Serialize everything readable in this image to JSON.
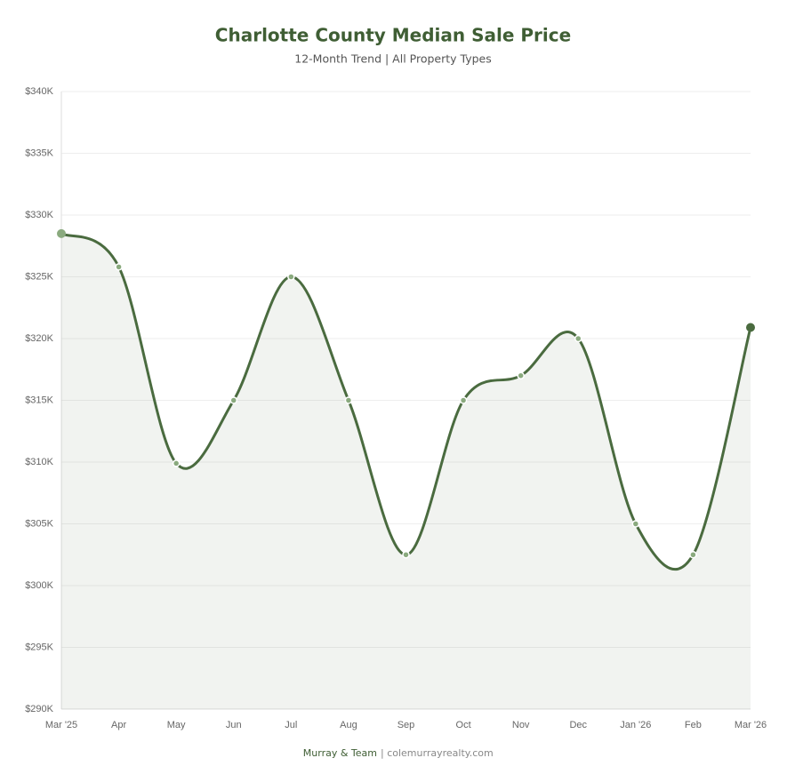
{
  "chart_data": {
    "type": "line",
    "title": "Charlotte County Median Sale Price",
    "subtitle": "12-Month Trend | All Property Types",
    "categories": [
      "Mar '25",
      "Apr",
      "May",
      "Jun",
      "Jul",
      "Aug",
      "Sep",
      "Oct",
      "Nov",
      "Dec",
      "Jan '26",
      "Feb",
      "Mar '26"
    ],
    "values": [
      328.5,
      325.8,
      309.9,
      315,
      325,
      315,
      302.5,
      315,
      317,
      320,
      305,
      302.5,
      320.9
    ],
    "color": "#4a6b3f",
    "ylim": [
      290,
      340
    ],
    "yticks": [
      {
        "value": 290,
        "label": "$290K"
      },
      {
        "value": 295,
        "label": "$295K"
      },
      {
        "value": 300,
        "label": "$300K"
      },
      {
        "value": 305,
        "label": "$305K"
      },
      {
        "value": 310,
        "label": "$310K"
      },
      {
        "value": 315,
        "label": "$315K"
      },
      {
        "value": 320,
        "label": "$320K"
      },
      {
        "value": 325,
        "label": "$325K"
      },
      {
        "value": 330,
        "label": "$330K"
      },
      {
        "value": 335,
        "label": "$335K"
      },
      {
        "value": 340,
        "label": "$340K"
      }
    ],
    "grid": true,
    "footer_brand": "Murray & Team",
    "footer_site": "| colemurrayrealty.com"
  }
}
